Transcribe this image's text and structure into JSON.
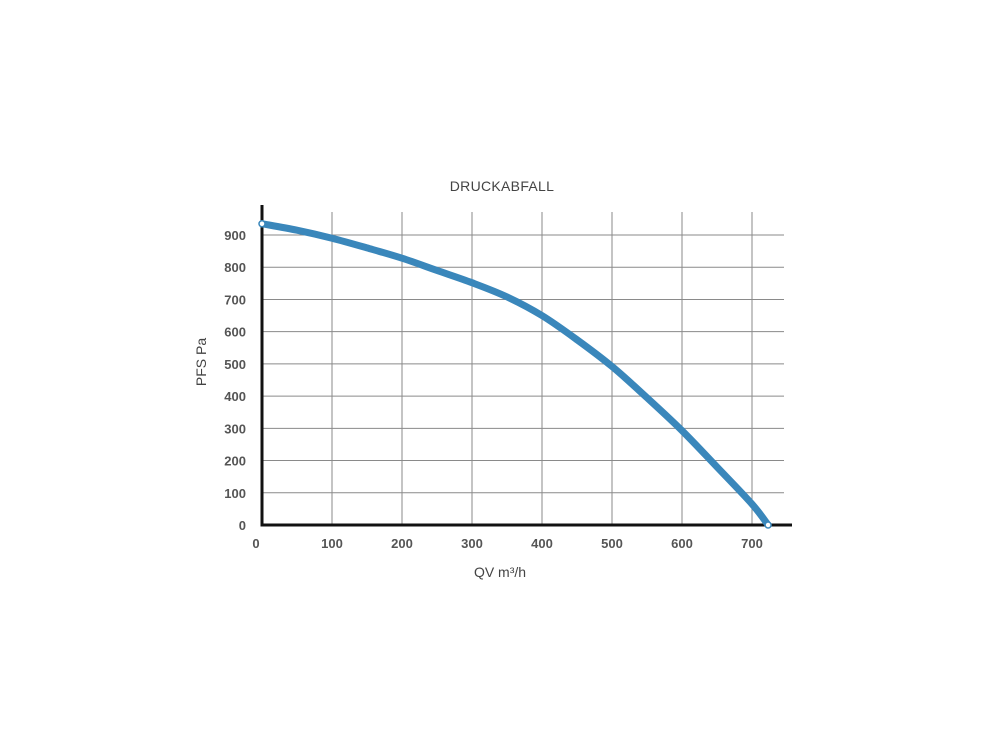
{
  "chart_data": {
    "type": "line",
    "title": "DRUCKABFALL",
    "xlabel": "QV m³/h",
    "ylabel": "PFS Pa",
    "xlim": [
      0,
      750
    ],
    "ylim": [
      0,
      950
    ],
    "x_ticks": [
      0,
      100,
      200,
      300,
      400,
      500,
      600,
      700
    ],
    "y_ticks": [
      0,
      100,
      200,
      300,
      400,
      500,
      600,
      700,
      800,
      900
    ],
    "x_tick_labels": [
      "0",
      "100",
      "200",
      "300",
      "400",
      "500",
      "600",
      "700"
    ],
    "y_tick_labels": [
      "0",
      "100",
      "200",
      "300",
      "400",
      "500",
      "600",
      "700",
      "800",
      "900"
    ],
    "grid": true,
    "series": [
      {
        "color": "#3a87bb",
        "x": [
          0,
          50,
          100,
          150,
          200,
          250,
          300,
          350,
          400,
          450,
          500,
          550,
          600,
          650,
          700,
          723
        ],
        "y": [
          935,
          915,
          890,
          860,
          828,
          790,
          752,
          708,
          650,
          575,
          492,
          395,
          293,
          180,
          65,
          0
        ]
      }
    ]
  }
}
